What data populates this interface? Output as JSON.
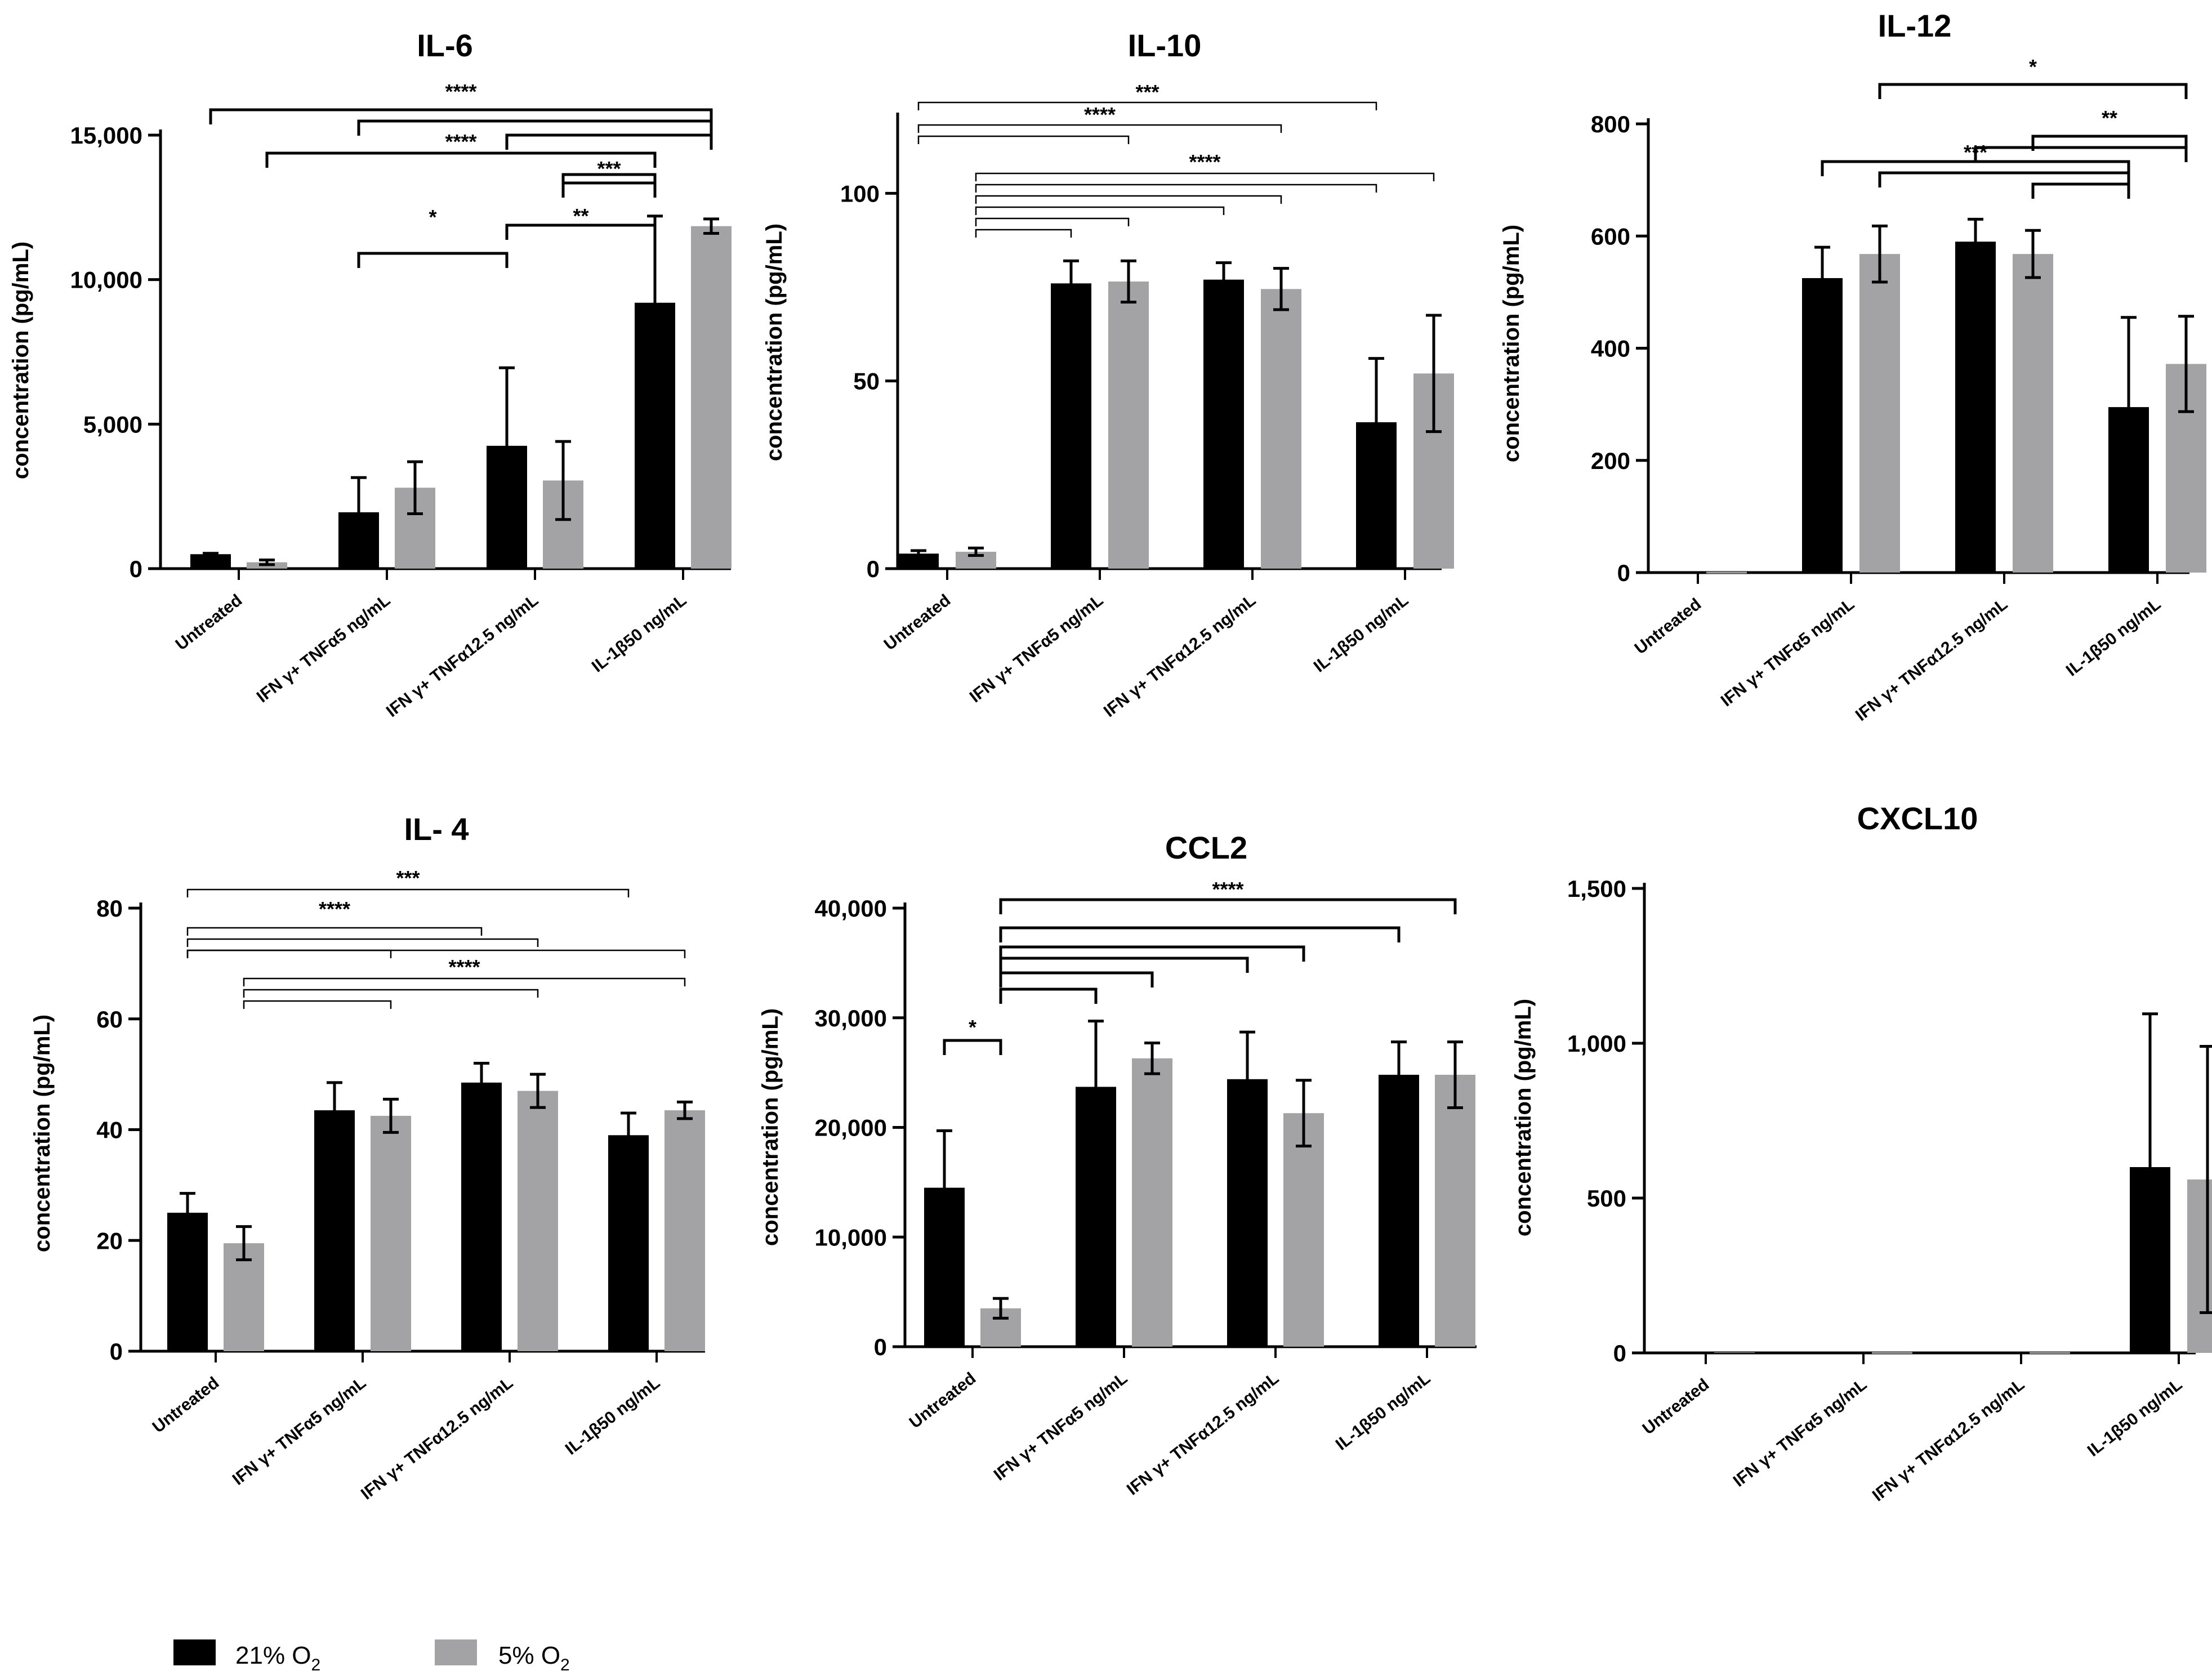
{
  "colors": {
    "series_21": "#000000",
    "series_5": "#a3a3a5",
    "axis": "#000000"
  },
  "legend": [
    {
      "label": "21% O",
      "sub": "2",
      "color": "#000000"
    },
    {
      "label": "5% O",
      "sub": "2",
      "color": "#a3a3a5"
    }
  ],
  "chart_data": [
    {
      "type": "bar",
      "title": "IL-6",
      "ylabel": "concentration (pg/mL)",
      "ylim": [
        0,
        15000
      ],
      "yticks": [
        0,
        5000,
        10000,
        15000
      ],
      "ytick_labels": [
        "0",
        "5,000",
        "10,000",
        "15,000"
      ],
      "categories": [
        "Untreated",
        "IFN γ+ TNFα5 ng/mL",
        "IFN γ+ TNFα12.5 ng/mL",
        "IL-1β50 ng/mL"
      ],
      "series": [
        {
          "name": "21% O2",
          "values": [
            500,
            1950,
            4250,
            9200
          ],
          "errors": [
            30,
            1200,
            2700,
            3000
          ]
        },
        {
          "name": "5% O2",
          "values": [
            220,
            2800,
            3050,
            11850
          ],
          "errors": [
            80,
            900,
            1350,
            250
          ]
        }
      ],
      "significance": [
        {
          "label": "****",
          "from": [
            0,
            0
          ],
          "to": [
            3,
            1
          ]
        },
        {
          "label": "",
          "from": [
            1,
            0
          ],
          "to": [
            3,
            1
          ]
        },
        {
          "label": "",
          "from": [
            2,
            0
          ],
          "to": [
            3,
            1
          ]
        },
        {
          "label": "****",
          "from": [
            0,
            1
          ],
          "to": [
            3,
            0
          ]
        },
        {
          "label": "***",
          "from": [
            2,
            1
          ],
          "to": [
            3,
            0
          ]
        },
        {
          "label": "",
          "from": [
            2,
            1
          ],
          "to": [
            3,
            0
          ]
        },
        {
          "label": "*",
          "from": [
            1,
            0
          ],
          "to": [
            2,
            0
          ]
        },
        {
          "label": "**",
          "from": [
            2,
            0
          ],
          "to": [
            3,
            0
          ]
        }
      ]
    },
    {
      "type": "bar",
      "title": "IL-10",
      "ylabel": "concentration (pg/mL)",
      "ylim": [
        0,
        120
      ],
      "yticks": [
        0,
        50,
        100
      ],
      "ytick_labels": [
        "0",
        "50",
        "100"
      ],
      "categories": [
        "Untreated",
        "IFN γ+ TNFα5 ng/mL",
        "IFN γ+ TNFα12.5 ng/mL",
        "IL-1β50 ng/mL"
      ],
      "series": [
        {
          "name": "21% O2",
          "values": [
            4,
            76,
            77,
            39
          ],
          "errors": [
            0.8,
            6,
            4.5,
            17
          ]
        },
        {
          "name": "5% O2",
          "values": [
            4.5,
            76.5,
            74.5,
            52
          ],
          "errors": [
            1,
            5.5,
            5.5,
            15.5
          ]
        }
      ],
      "significance": [
        {
          "label": "***",
          "from": [
            0,
            0
          ],
          "to": [
            3,
            0
          ]
        },
        {
          "label": "****",
          "from": [
            0,
            0
          ],
          "to": [
            2,
            1
          ]
        },
        {
          "label": "",
          "from": [
            0,
            0
          ],
          "to": [
            1,
            1
          ]
        },
        {
          "label": "****",
          "from": [
            0,
            1
          ],
          "to": [
            3,
            1
          ]
        },
        {
          "label": "",
          "from": [
            0,
            1
          ],
          "to": [
            3,
            0
          ]
        },
        {
          "label": "",
          "from": [
            0,
            1
          ],
          "to": [
            2,
            1
          ]
        },
        {
          "label": "",
          "from": [
            0,
            1
          ],
          "to": [
            2,
            0
          ]
        },
        {
          "label": "",
          "from": [
            0,
            1
          ],
          "to": [
            1,
            1
          ]
        },
        {
          "label": "",
          "from": [
            0,
            1
          ],
          "to": [
            1,
            0
          ]
        }
      ]
    },
    {
      "type": "bar",
      "title": "IL-12",
      "ylabel": "concentration (pg/mL)",
      "ylim": [
        0,
        800
      ],
      "yticks": [
        0,
        200,
        400,
        600,
        800
      ],
      "ytick_labels": [
        "0",
        "200",
        "400",
        "600",
        "800"
      ],
      "categories": [
        "Untreated",
        "IFN γ+ TNFα5 ng/mL",
        "IFN γ+ TNFα12.5 ng/mL",
        "IL-1β50 ng/mL"
      ],
      "series": [
        {
          "name": "21% O2",
          "values": [
            0,
            525,
            590,
            295
          ],
          "errors": [
            0,
            55,
            40,
            160
          ]
        },
        {
          "name": "5% O2",
          "values": [
            0,
            568,
            568,
            372
          ],
          "errors": [
            0,
            50,
            42,
            85
          ]
        }
      ],
      "significance": [
        {
          "label": "*",
          "from": [
            1,
            1
          ],
          "to": [
            3,
            1
          ]
        },
        {
          "label": "**",
          "from": [
            2,
            1
          ],
          "to": [
            3,
            1
          ]
        },
        {
          "label": "",
          "from": [
            2,
            0
          ],
          "to": [
            3,
            1
          ]
        },
        {
          "label": "***",
          "from": [
            1,
            0
          ],
          "to": [
            3,
            0
          ]
        },
        {
          "label": "",
          "from": [
            1,
            1
          ],
          "to": [
            3,
            0
          ]
        },
        {
          "label": "",
          "from": [
            2,
            1
          ],
          "to": [
            3,
            0
          ]
        }
      ]
    },
    {
      "type": "bar",
      "title": "IL- 4",
      "ylabel": "concentration (pg/mL)",
      "ylim": [
        0,
        80
      ],
      "yticks": [
        0,
        20,
        40,
        60,
        80
      ],
      "ytick_labels": [
        "0",
        "20",
        "40",
        "60",
        "80"
      ],
      "categories": [
        "Untreated",
        "IFN γ+ TNFα5 ng/mL",
        "IFN γ+ TNFα12.5 ng/mL",
        "IL-1β50 ng/mL"
      ],
      "series": [
        {
          "name": "21% O2",
          "values": [
            25,
            43.5,
            48.5,
            39
          ],
          "errors": [
            3.5,
            5,
            3.5,
            4
          ]
        },
        {
          "name": "5% O2",
          "values": [
            19.5,
            42.5,
            47,
            43.5
          ],
          "errors": [
            3,
            3,
            3,
            1.5
          ]
        }
      ],
      "significance": [
        {
          "label": "***",
          "from": [
            0,
            0
          ],
          "to": [
            3,
            0
          ]
        },
        {
          "label": "****",
          "from": [
            0,
            0
          ],
          "to": [
            2,
            0
          ]
        },
        {
          "label": "",
          "from": [
            0,
            0
          ],
          "to": [
            2,
            1
          ]
        },
        {
          "label": "",
          "from": [
            0,
            0
          ],
          "to": [
            3,
            1
          ]
        },
        {
          "label": "",
          "from": [
            0,
            0
          ],
          "to": [
            1,
            1
          ]
        },
        {
          "label": "****",
          "from": [
            0,
            1
          ],
          "to": [
            3,
            1
          ]
        },
        {
          "label": "",
          "from": [
            0,
            1
          ],
          "to": [
            2,
            1
          ]
        },
        {
          "label": "",
          "from": [
            0,
            1
          ],
          "to": [
            1,
            1
          ]
        }
      ]
    },
    {
      "type": "bar",
      "title": "CCL2",
      "ylabel": "concentration (pg/mL)",
      "ylim": [
        0,
        40000
      ],
      "yticks": [
        0,
        10000,
        20000,
        30000,
        40000
      ],
      "ytick_labels": [
        "0",
        "10,000",
        "20,000",
        "30,000",
        "40,000"
      ],
      "categories": [
        "Untreated",
        "IFN γ+ TNFα5 ng/mL",
        "IFN γ+ TNFα12.5 ng/mL",
        "IL-1β50 ng/mL"
      ],
      "series": [
        {
          "name": "21% O2",
          "values": [
            14500,
            23700,
            24400,
            24800
          ],
          "errors": [
            5200,
            6000,
            4300,
            3000
          ]
        },
        {
          "name": "5% O2",
          "values": [
            3500,
            26300,
            21300,
            24800
          ],
          "errors": [
            900,
            1400,
            3000,
            3000
          ]
        }
      ],
      "significance": [
        {
          "label": "****",
          "from": [
            0,
            1
          ],
          "to": [
            3,
            1
          ]
        },
        {
          "label": "",
          "from": [
            0,
            1
          ],
          "to": [
            3,
            0
          ]
        },
        {
          "label": "",
          "from": [
            0,
            1
          ],
          "to": [
            2,
            1
          ]
        },
        {
          "label": "",
          "from": [
            0,
            1
          ],
          "to": [
            2,
            0
          ]
        },
        {
          "label": "",
          "from": [
            0,
            1
          ],
          "to": [
            1,
            1
          ]
        },
        {
          "label": "",
          "from": [
            0,
            1
          ],
          "to": [
            1,
            0
          ]
        },
        {
          "label": "*",
          "from": [
            0,
            0
          ],
          "to": [
            0,
            1
          ]
        }
      ]
    },
    {
      "type": "bar",
      "title": "CXCL10",
      "ylabel": "concentration (pg/mL)",
      "ylim": [
        0,
        1500
      ],
      "yticks": [
        0,
        500,
        1000,
        1500
      ],
      "ytick_labels": [
        "0",
        "500",
        "1,000",
        "1,500"
      ],
      "categories": [
        "Untreated",
        "IFN γ+ TNFα5 ng/mL",
        "IFN γ+ TNFα12.5 ng/mL",
        "IL-1β50 ng/mL"
      ],
      "series": [
        {
          "name": "21% O2",
          "values": [
            3,
            0,
            0,
            600
          ],
          "errors": [
            0,
            0,
            0,
            495
          ]
        },
        {
          "name": "5% O2",
          "values": [
            2,
            0,
            0,
            560
          ],
          "errors": [
            0,
            0,
            0,
            430
          ]
        }
      ],
      "significance": []
    }
  ]
}
